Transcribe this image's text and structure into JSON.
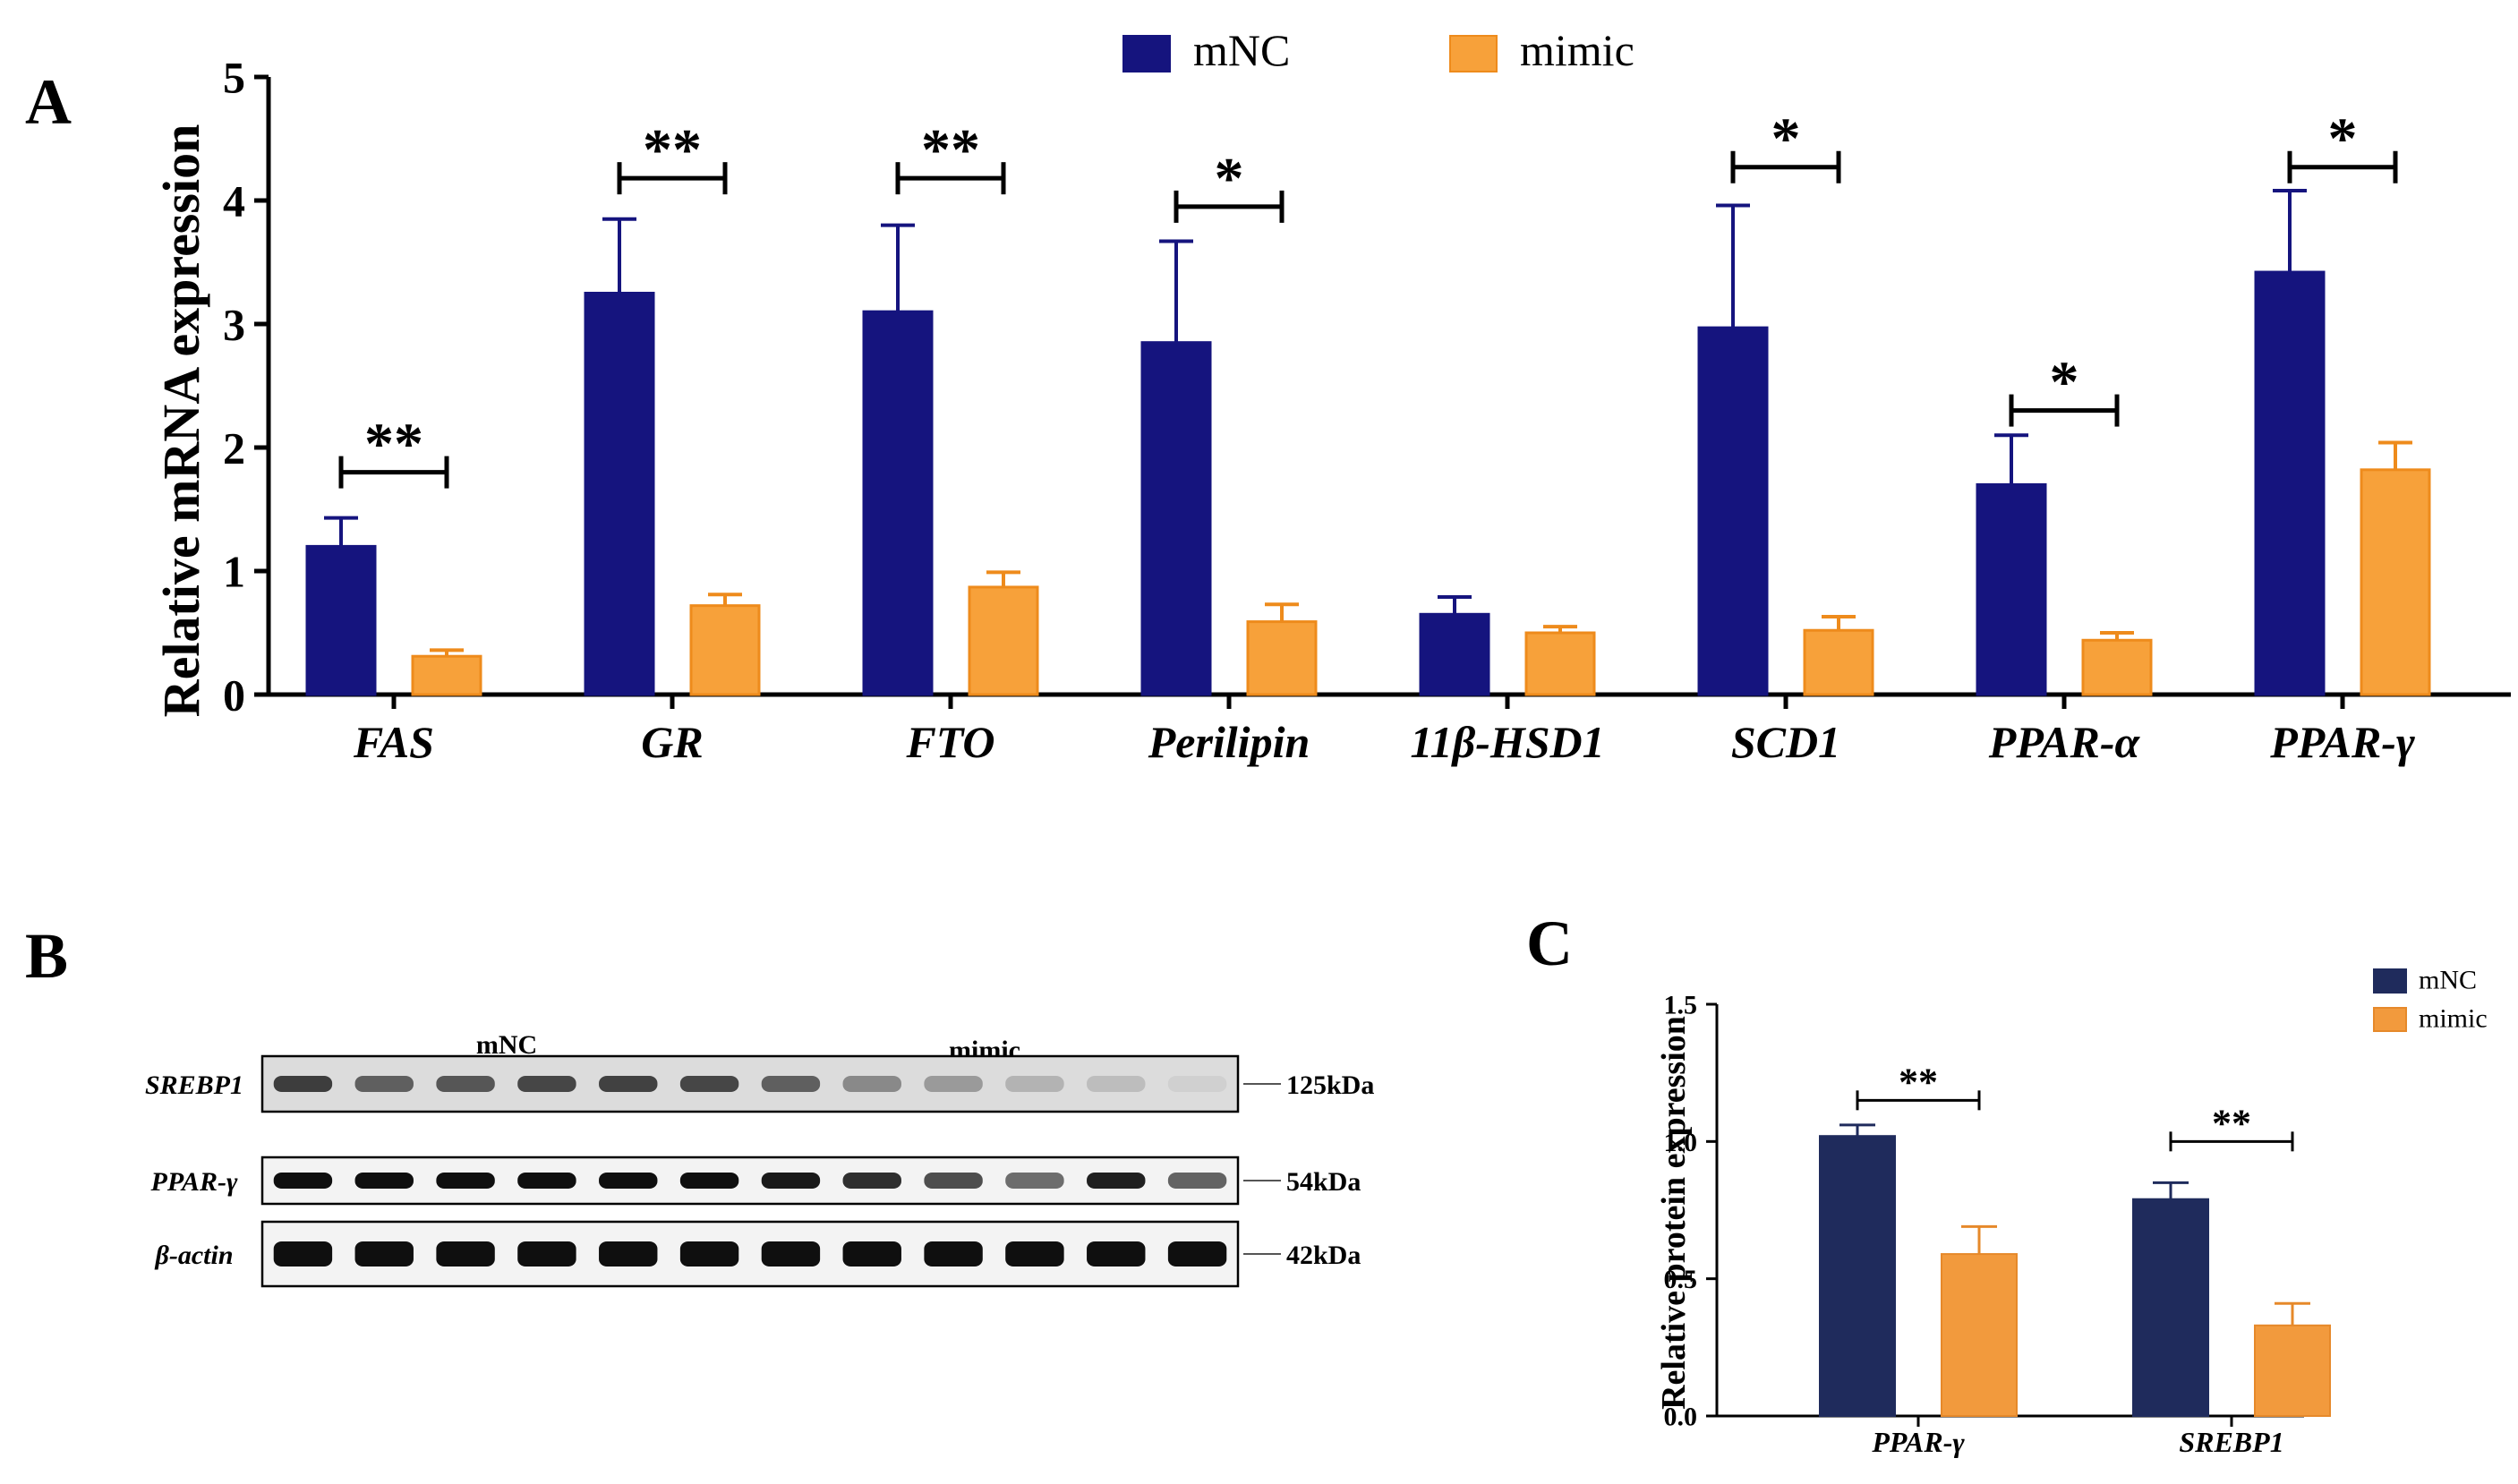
{
  "colors": {
    "mNC_A": "#15147E",
    "mimic_A": "#F7A13A",
    "mimic_A_edge": "#EE8B1C",
    "mNC_C": "#1F2B5C",
    "mimic_C": "#F29A3D",
    "mimic_C_edge": "#E6892A",
    "axis": "#000000"
  },
  "panels": {
    "A": "A",
    "B": "B",
    "C": "C"
  },
  "chart_data": [
    {
      "id": "A",
      "type": "bar",
      "title": "",
      "ylabel": "Relative mRNA expression",
      "xlabel": "",
      "ylim": [
        0,
        5
      ],
      "yticks": [
        "0",
        "1",
        "2",
        "3",
        "4",
        "5"
      ],
      "legend_position": "top-center",
      "categories": [
        "FAS",
        "GR",
        "FTO",
        "Perilipin",
        "11β-HSD1",
        "SCD1",
        "PPAR-α",
        "PPAR-γ"
      ],
      "series": [
        {
          "name": "mNC",
          "values": [
            1.2,
            3.25,
            3.1,
            2.85,
            0.65,
            2.97,
            1.7,
            3.42
          ],
          "errors": [
            0.23,
            0.6,
            0.7,
            0.82,
            0.14,
            0.99,
            0.4,
            0.66
          ]
        },
        {
          "name": "mimic",
          "values": [
            0.31,
            0.72,
            0.87,
            0.59,
            0.5,
            0.52,
            0.44,
            1.82
          ],
          "errors": [
            0.05,
            0.09,
            0.12,
            0.14,
            0.05,
            0.11,
            0.06,
            0.22
          ]
        }
      ],
      "significance": [
        {
          "category": "FAS",
          "label": "**",
          "level": 1.8
        },
        {
          "category": "GR",
          "label": "**",
          "level": 4.18
        },
        {
          "category": "FTO",
          "label": "**",
          "level": 4.18
        },
        {
          "category": "Perilipin",
          "label": "*",
          "level": 3.95
        },
        {
          "category": "SCD1",
          "label": "*",
          "level": 4.27
        },
        {
          "category": "PPAR-α",
          "label": "*",
          "level": 2.3
        },
        {
          "category": "PPAR-γ",
          "label": "*",
          "level": 4.27
        }
      ]
    },
    {
      "id": "C",
      "type": "bar",
      "title": "",
      "ylabel": "Relative protein expression",
      "xlabel": "",
      "ylim": [
        0,
        1.5
      ],
      "yticks": [
        "0.0",
        "0.5",
        "1.0",
        "1.5"
      ],
      "legend_position": "top-right",
      "categories": [
        "PPAR-γ",
        "SREBP1"
      ],
      "series": [
        {
          "name": "mNC",
          "values": [
            1.02,
            0.79
          ],
          "errors": [
            0.04,
            0.06
          ]
        },
        {
          "name": "mimic",
          "values": [
            0.59,
            0.33
          ],
          "errors": [
            0.1,
            0.08
          ]
        }
      ],
      "significance": [
        {
          "category": "PPAR-γ",
          "label": "**",
          "level": 1.15
        },
        {
          "category": "SREBP1",
          "label": "**",
          "level": 1.0
        }
      ]
    }
  ],
  "blot": {
    "groups": [
      "mNC",
      "mimic"
    ],
    "rows": [
      {
        "label": "SREBP1",
        "size": "125kDa",
        "intensities": [
          0.78,
          0.62,
          0.66,
          0.74,
          0.76,
          0.74,
          0.62,
          0.42,
          0.34,
          0.22,
          0.17,
          0.08
        ]
      },
      {
        "label": "PPAR-γ",
        "size": "54kDa",
        "intensities": [
          1,
          1,
          1,
          1,
          1,
          1,
          0.95,
          0.85,
          0.7,
          0.55,
          0.92,
          0.6
        ]
      },
      {
        "label": "β-actin",
        "size": "42kDa",
        "intensities": [
          1,
          1,
          1,
          1,
          1,
          1,
          1,
          1,
          1,
          1,
          1,
          1
        ]
      }
    ]
  }
}
